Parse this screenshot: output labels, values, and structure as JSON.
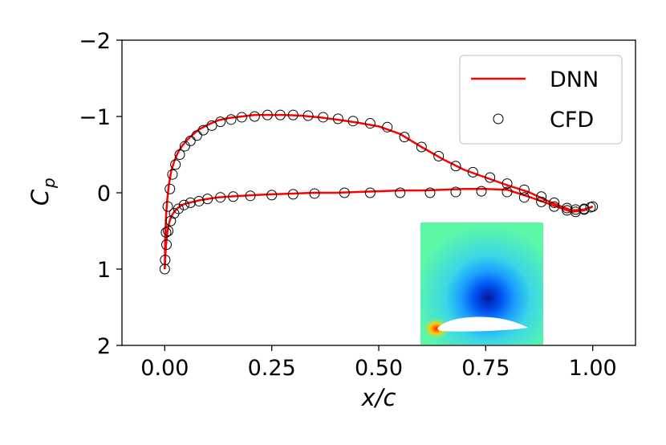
{
  "chart_data": {
    "type": "line",
    "title": "",
    "xlabel": "x/c",
    "ylabel_main": "C",
    "ylabel_sub": "p",
    "xlim": [
      -0.1,
      1.1
    ],
    "ylim": [
      2,
      -2
    ],
    "y_inverted": true,
    "x_ticks": [
      0.0,
      0.25,
      0.5,
      0.75,
      1.0
    ],
    "x_tick_labels": [
      "0.00",
      "0.25",
      "0.50",
      "0.75",
      "1.00"
    ],
    "y_ticks": [
      -2,
      -1,
      0,
      1,
      2
    ],
    "y_tick_labels": [
      "−2",
      "−1",
      "0",
      "1",
      "2"
    ],
    "grid": false,
    "legend": {
      "position": "top-right",
      "entries": [
        "DNN",
        "CFD"
      ]
    },
    "colors": {
      "dnn": "#ff0000",
      "cfd_edge": "#000000"
    },
    "series": [
      {
        "name": "DNN",
        "style": "line",
        "upper_surface": {
          "x": [
            0.0,
            0.001,
            0.003,
            0.006,
            0.01,
            0.015,
            0.022,
            0.03,
            0.04,
            0.05,
            0.065,
            0.08,
            0.1,
            0.125,
            0.15,
            0.18,
            0.21,
            0.25,
            0.28,
            0.32,
            0.36,
            0.4,
            0.45,
            0.5,
            0.55,
            0.6,
            0.65,
            0.7,
            0.75,
            0.8,
            0.85,
            0.9,
            0.95,
            0.98,
            1.0
          ],
          "y": [
            1.0,
            0.62,
            0.3,
            0.08,
            -0.12,
            -0.28,
            -0.41,
            -0.52,
            -0.61,
            -0.68,
            -0.76,
            -0.83,
            -0.89,
            -0.95,
            -0.98,
            -1.0,
            -1.02,
            -1.02,
            -1.02,
            -1.01,
            -0.99,
            -0.96,
            -0.92,
            -0.87,
            -0.77,
            -0.6,
            -0.44,
            -0.3,
            -0.2,
            -0.1,
            -0.01,
            0.12,
            0.23,
            0.22,
            0.18
          ]
        },
        "lower_surface": {
          "x": [
            0.0,
            0.001,
            0.003,
            0.006,
            0.01,
            0.015,
            0.022,
            0.03,
            0.04,
            0.05,
            0.065,
            0.08,
            0.1,
            0.125,
            0.15,
            0.18,
            0.21,
            0.25,
            0.3,
            0.35,
            0.4,
            0.45,
            0.5,
            0.55,
            0.6,
            0.65,
            0.7,
            0.75,
            0.8,
            0.85,
            0.9,
            0.95,
            0.98,
            1.0
          ],
          "y": [
            1.0,
            0.85,
            0.68,
            0.52,
            0.4,
            0.31,
            0.25,
            0.2,
            0.16,
            0.14,
            0.12,
            0.1,
            0.08,
            0.06,
            0.05,
            0.04,
            0.03,
            0.02,
            0.01,
            0.0,
            0.0,
            -0.01,
            -0.02,
            -0.03,
            -0.03,
            -0.04,
            -0.05,
            -0.05,
            -0.04,
            0.05,
            0.15,
            0.25,
            0.23,
            0.18
          ]
        }
      },
      {
        "name": "CFD",
        "style": "markers-open-circle",
        "upper_surface": {
          "x": [
            0.0,
            0.003,
            0.007,
            0.012,
            0.018,
            0.025,
            0.035,
            0.047,
            0.06,
            0.075,
            0.09,
            0.11,
            0.13,
            0.155,
            0.18,
            0.21,
            0.24,
            0.27,
            0.3,
            0.335,
            0.37,
            0.405,
            0.44,
            0.48,
            0.52,
            0.56,
            0.6,
            0.64,
            0.68,
            0.72,
            0.76,
            0.8,
            0.84,
            0.88,
            0.91,
            0.94,
            0.96,
            0.98,
            0.995
          ],
          "y": [
            1.0,
            0.52,
            0.18,
            -0.05,
            -0.24,
            -0.37,
            -0.5,
            -0.61,
            -0.68,
            -0.75,
            -0.82,
            -0.88,
            -0.93,
            -0.96,
            -0.99,
            -1.0,
            -1.02,
            -1.02,
            -1.02,
            -1.01,
            -0.99,
            -0.97,
            -0.94,
            -0.91,
            -0.86,
            -0.73,
            -0.6,
            -0.48,
            -0.35,
            -0.27,
            -0.2,
            -0.12,
            -0.04,
            0.05,
            0.13,
            0.2,
            0.22,
            0.21,
            0.19
          ]
        },
        "lower_surface": {
          "x": [
            0.001,
            0.004,
            0.008,
            0.014,
            0.022,
            0.032,
            0.045,
            0.06,
            0.08,
            0.1,
            0.13,
            0.16,
            0.2,
            0.25,
            0.3,
            0.35,
            0.42,
            0.48,
            0.55,
            0.62,
            0.68,
            0.74,
            0.8,
            0.84,
            0.88,
            0.91,
            0.94,
            0.96,
            0.98,
            1.0
          ],
          "y": [
            0.88,
            0.68,
            0.5,
            0.37,
            0.27,
            0.21,
            0.16,
            0.13,
            0.11,
            0.08,
            0.06,
            0.05,
            0.04,
            0.03,
            0.02,
            0.01,
            0.0,
            0.0,
            0.0,
            0.0,
            -0.01,
            -0.02,
            -0.01,
            0.06,
            0.12,
            0.18,
            0.23,
            0.25,
            0.22,
            0.18
          ]
        }
      }
    ],
    "inset": {
      "description_color_ramp": [
        "#5dfc9b",
        "#45e8d2",
        "#2bb2ff",
        "#0066ff",
        "#001fb8",
        "#ff4400"
      ]
    }
  }
}
